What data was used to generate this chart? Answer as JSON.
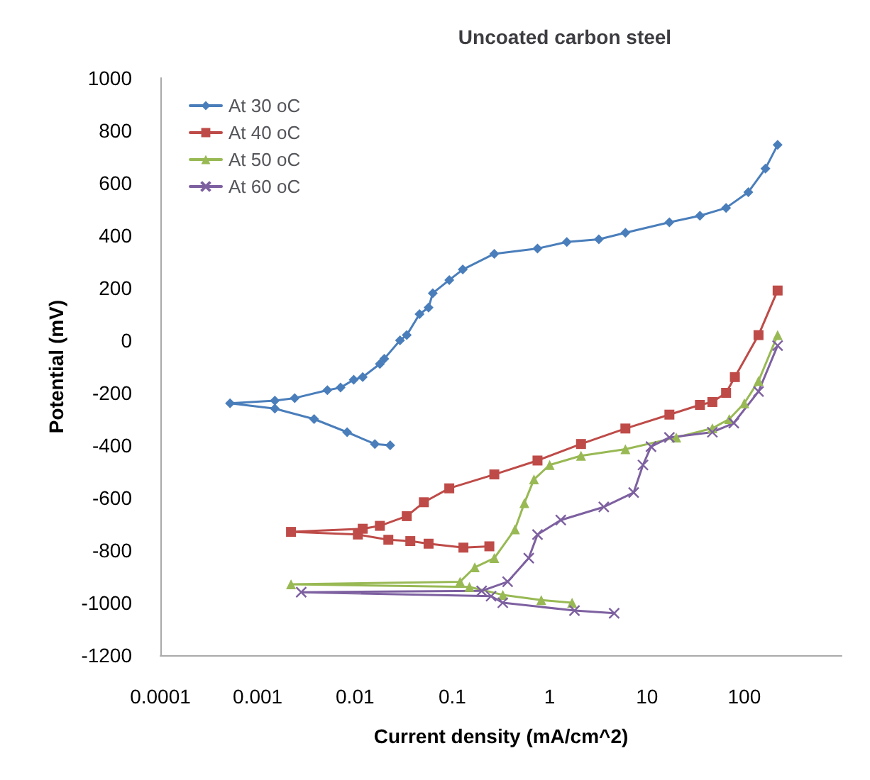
{
  "chart_data": {
    "type": "line",
    "title": "Uncoated carbon steel",
    "xlabel": "Current density (mA/cm^2)",
    "ylabel": "Potential (mV)",
    "log": "x",
    "xlim": [
      0.0001,
      1000
    ],
    "xticks": [
      {
        "value": 0.0001,
        "label": "0.0001"
      },
      {
        "value": 0.001,
        "label": "0.001"
      },
      {
        "value": 0.01,
        "label": "0.01"
      },
      {
        "value": 0.1,
        "label": "0.1"
      },
      1,
      10,
      100
    ],
    "ylim": [
      -1200,
      1000
    ],
    "yticks": [
      -1200,
      -1000,
      -800,
      -600,
      -400,
      -200,
      0,
      200,
      400,
      600,
      800,
      1000
    ],
    "grid": false,
    "legend": "top left",
    "line_style": "solid",
    "series": [
      {
        "name": "At 30 oC",
        "color": "#4a7ebb",
        "marker": "diamond",
        "x": [
          0.023,
          0.016,
          0.0083,
          0.0038,
          0.0015,
          0.00052,
          0.0015,
          0.0024,
          0.0052,
          0.0071,
          0.0097,
          0.012,
          0.018,
          0.02,
          0.029,
          0.034,
          0.046,
          0.057,
          0.063,
          0.093,
          0.128,
          0.27,
          0.75,
          1.5,
          3.2,
          6,
          17,
          35,
          65,
          110,
          165,
          220
        ],
        "values": [
          -400,
          -395,
          -350,
          -300,
          -260,
          -240,
          -230,
          -220,
          -190,
          -180,
          -150,
          -140,
          -90,
          -70,
          0,
          20,
          100,
          125,
          180,
          230,
          270,
          330,
          350,
          375,
          385,
          410,
          450,
          475,
          505,
          565,
          655,
          745
        ]
      },
      {
        "name": "At 40 oC",
        "color": "#be4b48",
        "marker": "square",
        "x": [
          0.24,
          0.13,
          0.057,
          0.037,
          0.022,
          0.0107,
          0.0022,
          0.012,
          0.018,
          0.034,
          0.051,
          0.093,
          0.27,
          0.75,
          2.1,
          6,
          17,
          35,
          47,
          65,
          80,
          140,
          220
        ],
        "values": [
          -785,
          -790,
          -775,
          -765,
          -760,
          -740,
          -730,
          -718,
          -707,
          -670,
          -617,
          -564,
          -511,
          -458,
          -395,
          -336,
          -283,
          -246,
          -235,
          -200,
          -140,
          20,
          190
        ]
      },
      {
        "name": "At 50 oC",
        "color": "#98b954",
        "marker": "triangle",
        "x": [
          1.7,
          0.82,
          0.33,
          0.15,
          0.0022,
          0.12,
          0.17,
          0.27,
          0.44,
          0.55,
          0.69,
          1,
          2.1,
          6,
          20,
          47,
          70,
          100,
          140,
          220
        ],
        "values": [
          -1000,
          -990,
          -970,
          -940,
          -930,
          -920,
          -865,
          -830,
          -720,
          -620,
          -530,
          -475,
          -440,
          -415,
          -370,
          -335,
          -300,
          -240,
          -155,
          20
        ]
      },
      {
        "name": "At 60 oC",
        "color": "#7d60a0",
        "marker": "cross",
        "x": [
          4.6,
          1.8,
          0.33,
          0.25,
          0.0028,
          0.2,
          0.37,
          0.61,
          0.75,
          1.3,
          3.6,
          7.3,
          9.1,
          11,
          17,
          47,
          78,
          140,
          220
        ],
        "values": [
          -1040,
          -1030,
          -1000,
          -975,
          -960,
          -955,
          -920,
          -830,
          -740,
          -685,
          -635,
          -580,
          -475,
          -405,
          -370,
          -350,
          -315,
          -195,
          -20
        ]
      }
    ]
  }
}
